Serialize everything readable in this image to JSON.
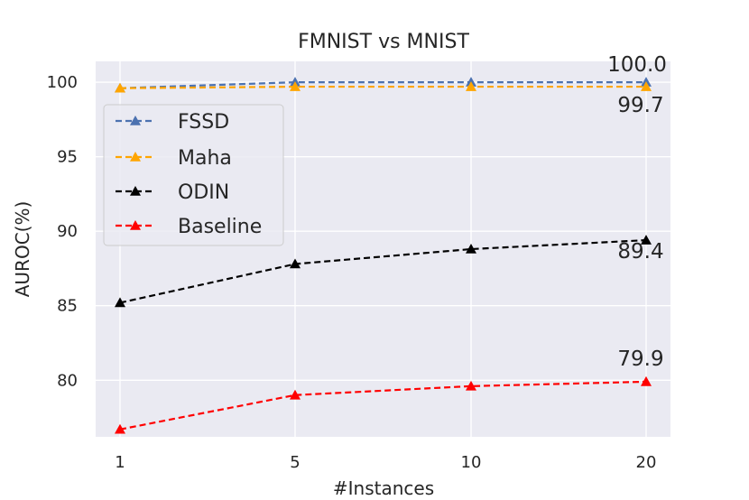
{
  "chart_data": {
    "type": "line",
    "title": "FMNIST vs MNIST",
    "xlabel": "#Instances",
    "ylabel": "AUROC(%)",
    "categories": [
      "1",
      "5",
      "10",
      "20"
    ],
    "ylim": [
      76.2,
      101.4
    ],
    "yticks": [
      "80",
      "85",
      "90",
      "95",
      "100"
    ],
    "grid": true,
    "legend_position": "center-left",
    "background": "#eaeaf2",
    "series": [
      {
        "name": "FSSD",
        "color": "#4c72b0",
        "values": [
          99.6,
          100.0,
          100.0,
          100.0
        ]
      },
      {
        "name": "Maha",
        "color": "#ffa500",
        "values": [
          99.6,
          99.7,
          99.7,
          99.7
        ]
      },
      {
        "name": "ODIN",
        "color": "#000000",
        "values": [
          85.2,
          87.8,
          88.8,
          89.4
        ]
      },
      {
        "name": "Baseline",
        "color": "#ff0000",
        "values": [
          76.7,
          79.0,
          79.6,
          79.9
        ]
      }
    ],
    "annotations": [
      "100.0",
      "99.7",
      "89.4",
      "79.9"
    ]
  }
}
